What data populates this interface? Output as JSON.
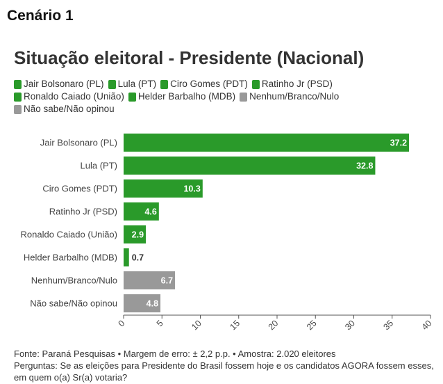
{
  "header": "Cenário 1",
  "footer": {
    "source": "Fonte: Paraná Pesquisas • Margem de erro: ± 2,2 p.p. • Amostra: 2.020 eleitores",
    "question": "Perguntas: Se as eleições para Presidente do Brasil fossem hoje e os candidatos AGORA fossem esses, em quem o(a) Sr(a) votaria?"
  },
  "colors": {
    "green": "#2a9a2a",
    "gray": "#999999"
  },
  "chart_data": {
    "type": "bar",
    "orientation": "horizontal",
    "title": "Situação eleitoral - Presidente (Nacional)",
    "categories": [
      "Jair Bolsonaro (PL)",
      "Lula (PT)",
      "Ciro Gomes (PDT)",
      "Ratinho Jr (PSD)",
      "Ronaldo Caiado (União)",
      "Helder Barbalho (MDB)",
      "Nenhum/Branco/Nulo",
      "Não sabe/Não opinou"
    ],
    "values": [
      37.2,
      32.8,
      10.3,
      4.6,
      2.9,
      0.7,
      6.7,
      4.8
    ],
    "value_labels": [
      "37.2",
      "32.8",
      "10.3",
      "4.6",
      "2.9",
      "0.7",
      "6.7",
      "4.8"
    ],
    "bar_colors": [
      "#2a9a2a",
      "#2a9a2a",
      "#2a9a2a",
      "#2a9a2a",
      "#2a9a2a",
      "#2a9a2a",
      "#999999",
      "#999999"
    ],
    "legend": [
      {
        "label": "Jair Bolsonaro (PL)",
        "color": "#2a9a2a"
      },
      {
        "label": "Lula (PT)",
        "color": "#2a9a2a"
      },
      {
        "label": "Ciro Gomes (PDT)",
        "color": "#2a9a2a"
      },
      {
        "label": "Ratinho Jr (PSD)",
        "color": "#2a9a2a"
      },
      {
        "label": "Ronaldo Caiado (União)",
        "color": "#2a9a2a"
      },
      {
        "label": "Helder Barbalho (MDB)",
        "color": "#2a9a2a"
      },
      {
        "label": "Nenhum/Branco/Nulo",
        "color": "#999999"
      },
      {
        "label": "Não sabe/Não opinou",
        "color": "#999999"
      }
    ],
    "xlim": [
      0,
      40
    ],
    "xticks": [
      0,
      5,
      10,
      15,
      20,
      25,
      30,
      35,
      40
    ],
    "xlabel": "",
    "ylabel": "",
    "legend_position": "top",
    "grid": false
  }
}
